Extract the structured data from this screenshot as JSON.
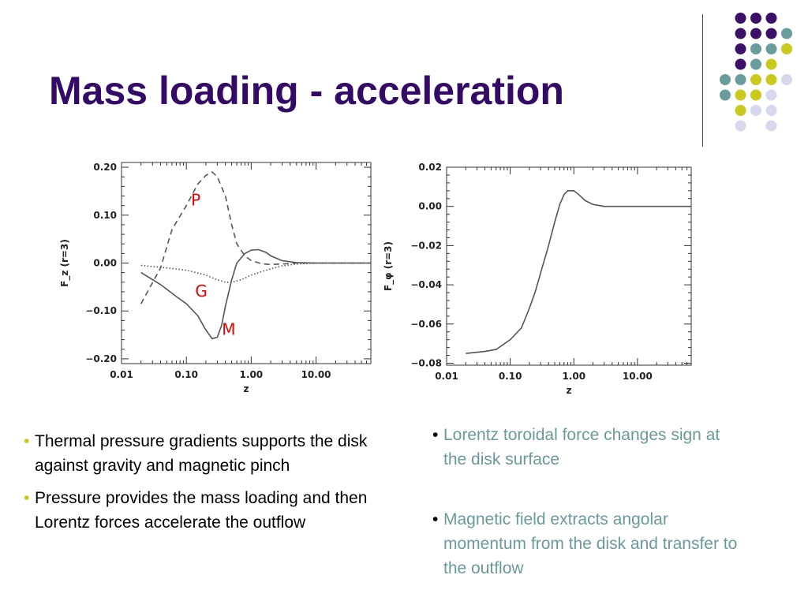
{
  "slide": {
    "title": "Mass loading - acceleration",
    "dot_colors": {
      "purple": "#3a1068",
      "teal": "#6b9c9c",
      "yellow": "#c9c91e",
      "lavender": "#d8d8ec"
    }
  },
  "bullets_left": [
    "Thermal pressure gradients supports the disk against gravity and magnetic pinch",
    "Pressure provides the mass loading and then Lorentz forces accelerate the outflow"
  ],
  "bullets_right": [
    "Lorentz toroidal force changes sign at the disk surface",
    "Magnetic field extracts angolar momentum from the disk and transfer to the outflow"
  ],
  "bullet_symbol": "•",
  "chart_data": [
    {
      "type": "line",
      "x_scale": "log",
      "xlim": [
        0.01,
        70
      ],
      "ylim": [
        -0.21,
        0.21
      ],
      "xlabel": "z",
      "ylabel": "F_z (r=3)",
      "xticks": [
        0.01,
        0.1,
        1,
        10
      ],
      "xtick_labels": [
        "0.01",
        "0.10",
        "1.00",
        "10.00"
      ],
      "yticks": [
        -0.2,
        -0.1,
        0,
        0.1,
        0.2
      ],
      "ytick_labels": [
        "−0.20",
        "−0.10",
        "0.00",
        "0.10",
        "0.20"
      ],
      "series": [
        {
          "name": "P",
          "style": "dashed",
          "x": [
            0.02,
            0.04,
            0.06,
            0.1,
            0.15,
            0.2,
            0.25,
            0.3,
            0.4,
            0.5,
            0.6,
            0.8,
            1,
            1.5,
            2,
            3,
            5,
            10,
            20,
            70
          ],
          "y": [
            -0.085,
            -0.01,
            0.07,
            0.12,
            0.165,
            0.183,
            0.19,
            0.18,
            0.14,
            0.08,
            0.04,
            0.015,
            0.005,
            -0.002,
            -0.003,
            -0.002,
            0,
            0,
            0,
            0
          ]
        },
        {
          "name": "G",
          "style": "dotted",
          "x": [
            0.02,
            0.05,
            0.1,
            0.2,
            0.3,
            0.4,
            0.5,
            0.7,
            1,
            2,
            3,
            5,
            10,
            20,
            70
          ],
          "y": [
            -0.005,
            -0.01,
            -0.015,
            -0.025,
            -0.035,
            -0.04,
            -0.04,
            -0.035,
            -0.025,
            -0.012,
            -0.006,
            -0.002,
            0,
            0,
            0
          ]
        },
        {
          "name": "M",
          "style": "solid",
          "x": [
            0.02,
            0.04,
            0.07,
            0.1,
            0.15,
            0.2,
            0.25,
            0.3,
            0.35,
            0.4,
            0.5,
            0.6,
            0.8,
            1,
            1.3,
            1.7,
            2,
            3,
            5,
            10,
            20,
            70
          ],
          "y": [
            -0.02,
            -0.045,
            -0.07,
            -0.085,
            -0.11,
            -0.14,
            -0.158,
            -0.155,
            -0.13,
            -0.09,
            -0.035,
            0,
            0.02,
            0.027,
            0.028,
            0.022,
            0.015,
            0.005,
            0.001,
            0,
            0,
            0
          ]
        }
      ],
      "annotations": [
        {
          "text": "P",
          "x": 0.14,
          "y": 0.12
        },
        {
          "text": "G",
          "x": 0.17,
          "y": -0.07
        },
        {
          "text": "M",
          "x": 0.45,
          "y": -0.15
        }
      ]
    },
    {
      "type": "line",
      "x_scale": "log",
      "xlim": [
        0.01,
        70
      ],
      "ylim": [
        -0.081,
        0.02
      ],
      "xlabel": "z",
      "ylabel": "F_φ (r=3)",
      "xticks": [
        0.01,
        0.1,
        1,
        10
      ],
      "xtick_labels": [
        "0.01",
        "0.10",
        "1.00",
        "10.00"
      ],
      "yticks": [
        -0.08,
        -0.06,
        -0.04,
        -0.02,
        0,
        0.02
      ],
      "ytick_labels": [
        "−0.08",
        "−0.06",
        "−0.04",
        "−0.02",
        "0.00",
        "0.02"
      ],
      "series": [
        {
          "style": "solid",
          "x": [
            0.02,
            0.04,
            0.06,
            0.1,
            0.15,
            0.2,
            0.25,
            0.3,
            0.4,
            0.5,
            0.6,
            0.7,
            0.8,
            0.9,
            1,
            1.2,
            1.5,
            2,
            3,
            5,
            10,
            20,
            70
          ],
          "y": [
            -0.075,
            -0.074,
            -0.073,
            -0.068,
            -0.062,
            -0.052,
            -0.043,
            -0.034,
            -0.02,
            -0.008,
            0.001,
            0.006,
            0.008,
            0.008,
            0.008,
            0.006,
            0.003,
            0.001,
            0,
            0,
            0,
            0,
            0
          ]
        }
      ]
    }
  ]
}
